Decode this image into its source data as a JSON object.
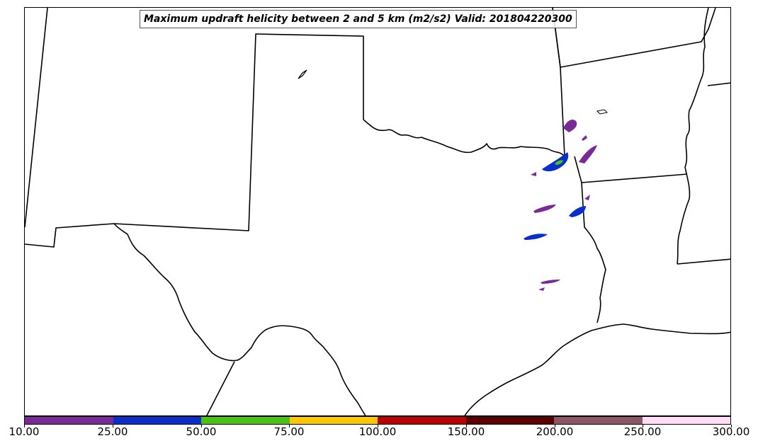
{
  "map": {
    "title": "Maximum updraft helicity between 2 and 5 km (m2/s2) Valid: 201804220300",
    "field": "updraft helicity 2-5 km",
    "units": "m2/s2",
    "valid_time": "201804220300",
    "region": "Southern Plains (Texas, Oklahoma, Louisiana, Arkansas)",
    "boundary_color": "#000000",
    "background_color": "#ffffff"
  },
  "colorbar": {
    "levels": [
      "10.00",
      "25.00",
      "50.00",
      "75.00",
      "100.00",
      "150.00",
      "200.00",
      "250.00",
      "300.00"
    ],
    "colors": [
      "#7a2a96",
      "#0a2ecb",
      "#49c312",
      "#ffc800",
      "#bb0000",
      "#5c0000",
      "#8c5666",
      "#ffddf7"
    ]
  },
  "helicity_cells": [
    {
      "location": "NE Texas / SE Oklahoma border",
      "category": "50-75",
      "color": "#49c312"
    },
    {
      "location": "NE Texas / SE Oklahoma border",
      "category": "25-50",
      "color": "#0a2ecb"
    },
    {
      "location": "SW Arkansas",
      "category": "10-25",
      "color": "#7a2a96"
    },
    {
      "location": "East Texas near Louisiana border",
      "category": "25-50",
      "color": "#0a2ecb"
    },
    {
      "location": "East Texas",
      "category": "10-25",
      "color": "#7a2a96"
    },
    {
      "location": "East-central Texas",
      "category": "10-25",
      "color": "#7a2a96"
    }
  ]
}
